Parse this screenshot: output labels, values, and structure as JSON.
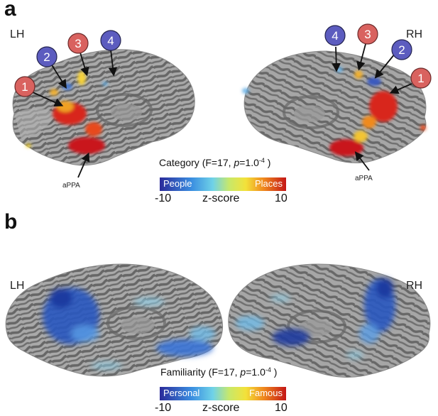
{
  "panel_a": {
    "letter": "a",
    "left_label": "LH",
    "right_label": "RH",
    "annotation_left": "aPPA",
    "annotation_right": "aPPA",
    "markers_left": [
      "1",
      "2",
      "3",
      "4"
    ],
    "markers_right": [
      "4",
      "3",
      "2",
      "1"
    ],
    "colorbar": {
      "title_prefix": "Category (F=17, ",
      "title_p": "p",
      "title_mid": "=1.0",
      "title_exp": "-4",
      "title_suffix": " )",
      "left_label": "People",
      "right_label": "Places",
      "min": "-10",
      "mid": "z-score",
      "max": "10"
    }
  },
  "panel_b": {
    "letter": "b",
    "left_label": "LH",
    "right_label": "RH",
    "colorbar": {
      "title_prefix": "Familiarity (F=17, ",
      "title_p": "p",
      "title_mid": "=1.0",
      "title_exp": "-4",
      "title_suffix": " )",
      "left_label": "Personal",
      "right_label": "Famous",
      "min": "-10",
      "mid": "z-score",
      "max": "10"
    }
  },
  "colors": {
    "marker_red": "#d9625f",
    "marker_blue": "#5c5cbf",
    "brain_light": "#a8a8a8",
    "brain_dark": "#6b6b6b"
  }
}
